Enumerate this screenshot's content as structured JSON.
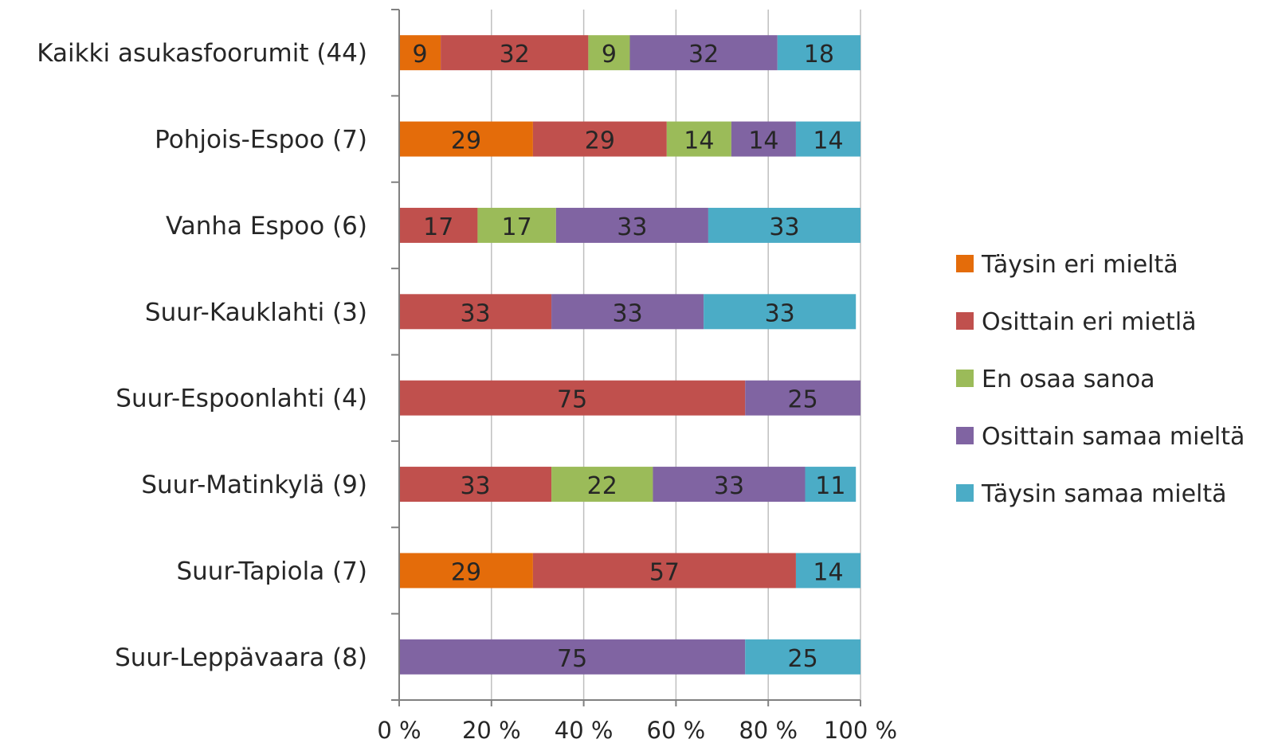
{
  "chart_data": {
    "type": "bar",
    "orientation": "horizontal",
    "stacked": "percent",
    "title": "",
    "xlabel": "",
    "ylabel": "",
    "xlim": [
      0,
      100
    ],
    "x_ticks": [
      "0 %",
      "20 %",
      "40 %",
      "60 %",
      "80 %",
      "100 %"
    ],
    "grid": "vertical major gridlines",
    "legend_position": "right",
    "categories": [
      "Kaikki asukasfoorumit (44)",
      "Pohjois-Espoo (7)",
      "Vanha Espoo (6)",
      "Suur-Kauklahti (3)",
      "Suur-Espoonlahti (4)",
      "Suur-Matinkylä (9)",
      "Suur-Tapiola (7)",
      "Suur-Leppävaara (8)"
    ],
    "series": [
      {
        "name": "Täysin eri mieltä",
        "color": "#E46C0A",
        "values": [
          9,
          29,
          0,
          0,
          0,
          0,
          29,
          0
        ]
      },
      {
        "name": "Osittain eri mietlä",
        "color": "#C0504D",
        "values": [
          32,
          29,
          17,
          33,
          75,
          33,
          57,
          0
        ]
      },
      {
        "name": "En osaa sanoa",
        "color": "#9BBB59",
        "values": [
          9,
          14,
          17,
          0,
          0,
          22,
          0,
          0
        ]
      },
      {
        "name": "Osittain samaa mieltä",
        "color": "#8064A2",
        "values": [
          32,
          14,
          33,
          33,
          25,
          33,
          0,
          75
        ]
      },
      {
        "name": "Täysin samaa mieltä",
        "color": "#4BACC6",
        "values": [
          18,
          14,
          33,
          33,
          0,
          11,
          14,
          25
        ]
      }
    ]
  }
}
